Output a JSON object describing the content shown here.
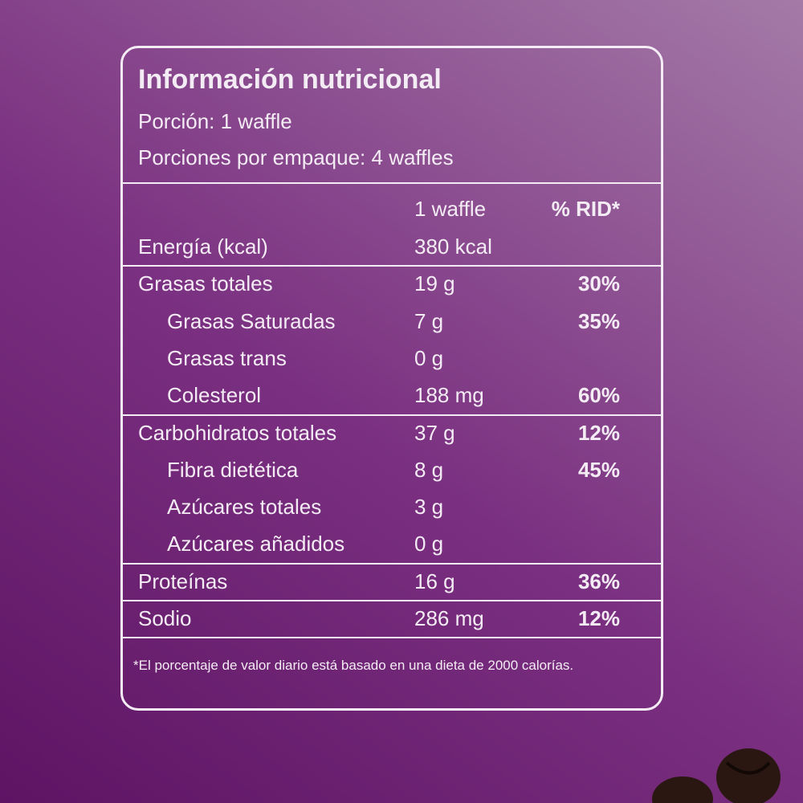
{
  "header": {
    "title": "Información nutricional",
    "serving": "Porción: 1 waffle",
    "servings": "Porciones por empaque: 4 waffles"
  },
  "table": {
    "columns": [
      "1 waffle",
      "% RID*"
    ],
    "groups": [
      {
        "rows": [
          {
            "name": "Energía (kcal)",
            "amount": "380 kcal"
          }
        ]
      },
      {
        "rows": [
          {
            "name": "Grasas totales",
            "amount": "19 g",
            "rid": "30%"
          },
          {
            "name": "Grasas Saturadas",
            "amount": "7 g",
            "rid": "35%",
            "indent": true
          },
          {
            "name": "Grasas trans",
            "amount": "0 g",
            "indent": true
          },
          {
            "name": "Colesterol",
            "amount": "188 mg",
            "rid": "60%",
            "indent": true
          }
        ]
      },
      {
        "rows": [
          {
            "name": "Carbohidratos totales",
            "amount": "37 g",
            "rid": "12%"
          },
          {
            "name": "Fibra dietética",
            "amount": "8 g",
            "rid": "45%",
            "indent": true
          },
          {
            "name": "Azúcares totales",
            "amount": "3 g",
            "indent": true
          },
          {
            "name": "Azúcares añadidos",
            "amount": "0 g",
            "indent": true
          }
        ]
      },
      {
        "rows": [
          {
            "name": "Proteínas",
            "amount": "16 g",
            "rid": "36%"
          }
        ]
      },
      {
        "rows": [
          {
            "name": "Sodio",
            "amount": "286 mg",
            "rid": "12%"
          }
        ]
      }
    ]
  },
  "footnote": "*El porcentaje de valor diario está basado en una dieta de 2000 calorías."
}
